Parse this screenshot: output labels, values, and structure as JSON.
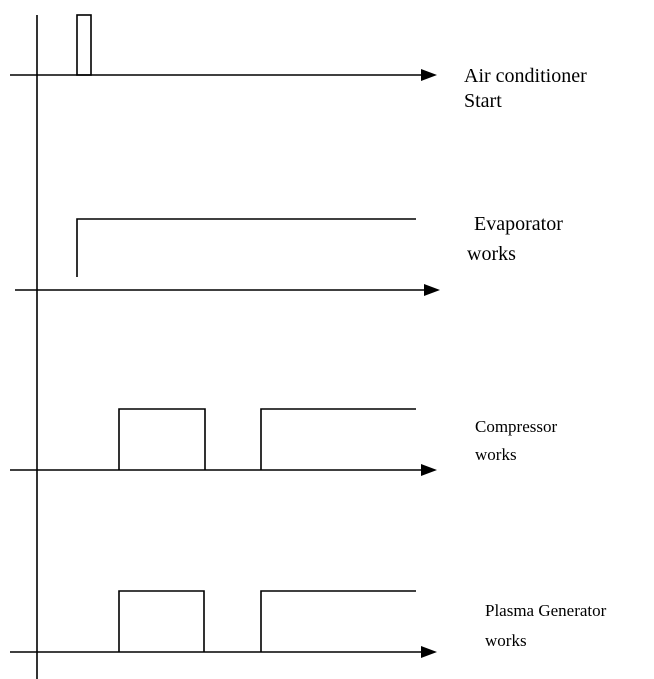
{
  "signals": [
    {
      "label": [
        "Air conditioner",
        "Start"
      ]
    },
    {
      "label": [
        "Evaporator",
        "works"
      ]
    },
    {
      "label": [
        "Compressor",
        "works"
      ]
    },
    {
      "label": [
        "Plasma Generator",
        "works"
      ]
    }
  ]
}
